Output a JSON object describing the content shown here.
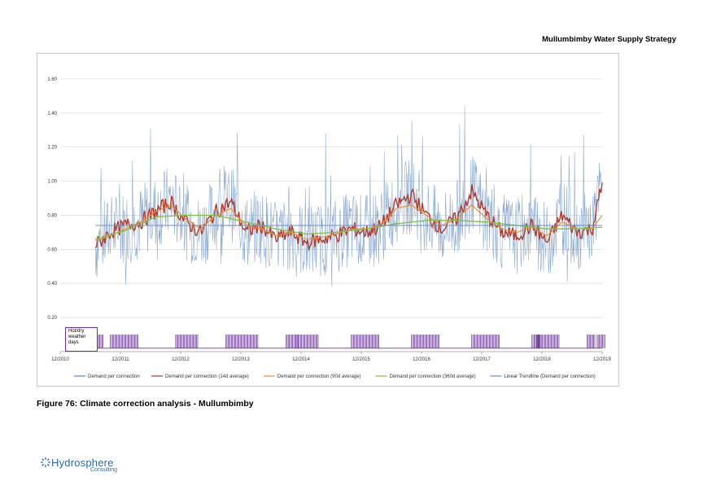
{
  "header": {
    "title": "Mullumbimby Water Supply Strategy"
  },
  "caption": "Figure 76: Climate correction analysis - Mullumbimby",
  "logo": {
    "name": "Hydrosphere",
    "sub": "Consulting",
    "icon": "sun-swirl-icon"
  },
  "chart_data": {
    "type": "line",
    "title": "",
    "xlabel": "",
    "ylabel": "",
    "ylim": [
      0,
      1.7
    ],
    "yticks": [
      "1.60",
      "1.40",
      "1.20",
      "1.00",
      "0.80",
      "0.60",
      "0.40",
      "0.20"
    ],
    "xticks": [
      "12/2010",
      "12/2011",
      "12/2012",
      "12/2013",
      "12/2014",
      "12/2015",
      "12/2016",
      "12/2017",
      "12/2018",
      "12/2019"
    ],
    "grid": true,
    "legend_position": "bottom",
    "x_start": "2010-12",
    "x_end": "2019-12",
    "data_start": "2011-07",
    "annotation": "Hot/dry weather days",
    "series": [
      {
        "name": "Demand per connection",
        "color": "#5b87c0"
      },
      {
        "name": "Demand per connection (14d average)",
        "color": "#b03a2e",
        "x": [
          "2011-07",
          "2011-10",
          "2012-01",
          "2012-04",
          "2012-07",
          "2012-10",
          "2013-01",
          "2013-04",
          "2013-07",
          "2013-10",
          "2014-01",
          "2014-04",
          "2014-07",
          "2014-10",
          "2015-01",
          "2015-04",
          "2015-07",
          "2015-10",
          "2016-01",
          "2016-04",
          "2016-07",
          "2016-10",
          "2017-01",
          "2017-04",
          "2017-07",
          "2017-10",
          "2018-01",
          "2018-04",
          "2018-07",
          "2018-10",
          "2019-01",
          "2019-04",
          "2019-07",
          "2019-10",
          "2019-12"
        ],
        "values": [
          0.62,
          0.7,
          0.74,
          0.76,
          0.82,
          0.88,
          0.76,
          0.7,
          0.82,
          0.88,
          0.7,
          0.74,
          0.66,
          0.7,
          0.64,
          0.66,
          0.68,
          0.72,
          0.7,
          0.74,
          0.86,
          0.92,
          0.8,
          0.72,
          0.78,
          0.94,
          0.8,
          0.7,
          0.68,
          0.74,
          0.64,
          0.8,
          0.7,
          0.72,
          0.98
        ]
      },
      {
        "name": "Demand per connection (90d average)",
        "color": "#f28a2e",
        "x": [
          "2011-07",
          "2011-10",
          "2012-01",
          "2012-04",
          "2012-07",
          "2012-10",
          "2013-01",
          "2013-04",
          "2013-07",
          "2013-10",
          "2014-01",
          "2014-04",
          "2014-07",
          "2014-10",
          "2015-01",
          "2015-04",
          "2015-07",
          "2015-10",
          "2016-01",
          "2016-04",
          "2016-07",
          "2016-10",
          "2017-01",
          "2017-04",
          "2017-07",
          "2017-10",
          "2018-01",
          "2018-04",
          "2018-07",
          "2018-10",
          "2019-01",
          "2019-04",
          "2019-07",
          "2019-10",
          "2019-12"
        ],
        "values": [
          0.65,
          0.68,
          0.72,
          0.76,
          0.82,
          0.86,
          0.78,
          0.72,
          0.8,
          0.84,
          0.74,
          0.72,
          0.68,
          0.7,
          0.66,
          0.67,
          0.69,
          0.72,
          0.72,
          0.74,
          0.84,
          0.86,
          0.8,
          0.74,
          0.78,
          0.86,
          0.78,
          0.72,
          0.7,
          0.73,
          0.68,
          0.76,
          0.72,
          0.72,
          0.8
        ]
      },
      {
        "name": "Demand per connection (360d average)",
        "color": "#7cc242",
        "x": [
          "2011-07",
          "2012-01",
          "2012-07",
          "2013-01",
          "2013-07",
          "2014-01",
          "2014-07",
          "2015-01",
          "2015-07",
          "2016-01",
          "2016-07",
          "2017-01",
          "2017-07",
          "2018-01",
          "2018-07",
          "2019-01",
          "2019-07",
          "2019-12"
        ],
        "values": [
          0.66,
          0.71,
          0.79,
          0.8,
          0.8,
          0.76,
          0.72,
          0.69,
          0.7,
          0.72,
          0.75,
          0.77,
          0.77,
          0.76,
          0.74,
          0.72,
          0.72,
          0.73
        ]
      },
      {
        "name": "Linear Trendline (Demand per connection)",
        "color": "#6e8fbd",
        "x": [
          "2011-07",
          "2019-12"
        ],
        "values": [
          0.74,
          0.74
        ]
      }
    ],
    "hot_dry_periods": [
      [
        "2011-07",
        "2011-08"
      ],
      [
        "2011-10",
        "2012-03"
      ],
      [
        "2012-11",
        "2013-03"
      ],
      [
        "2013-09",
        "2014-03"
      ],
      [
        "2014-09",
        "2014-11"
      ],
      [
        "2014-11",
        "2015-03"
      ],
      [
        "2015-10",
        "2016-03"
      ],
      [
        "2016-10",
        "2017-03"
      ],
      [
        "2017-10",
        "2018-03"
      ],
      [
        "2018-10",
        "2018-11"
      ],
      [
        "2018-11",
        "2019-03"
      ],
      [
        "2019-09",
        "2019-10"
      ],
      [
        "2019-11",
        "2019-12"
      ]
    ]
  }
}
